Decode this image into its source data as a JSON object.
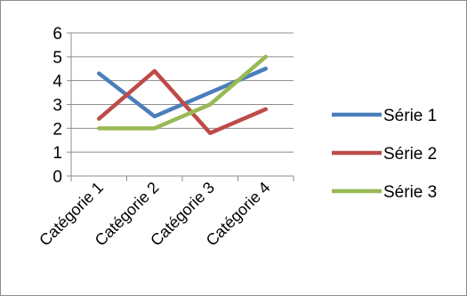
{
  "chart_data": {
    "type": "line",
    "categories": [
      "Catégorie 1",
      "Catégorie 2",
      "Catégorie 3",
      "Catégorie 4"
    ],
    "series": [
      {
        "name": "Série 1",
        "values": [
          4.3,
          2.5,
          3.5,
          4.5
        ],
        "color": "#4a7ebb"
      },
      {
        "name": "Série 2",
        "values": [
          2.4,
          4.4,
          1.8,
          2.8
        ],
        "color": "#be4b48"
      },
      {
        "name": "Série 3",
        "values": [
          2.0,
          2.0,
          3.0,
          5.0
        ],
        "color": "#98b954"
      }
    ],
    "ylim": [
      0,
      6
    ],
    "yticks": [
      "0",
      "1",
      "2",
      "3",
      "4",
      "5",
      "6"
    ],
    "grid": true,
    "legend": "right",
    "title": "",
    "xlabel": "",
    "ylabel": ""
  }
}
